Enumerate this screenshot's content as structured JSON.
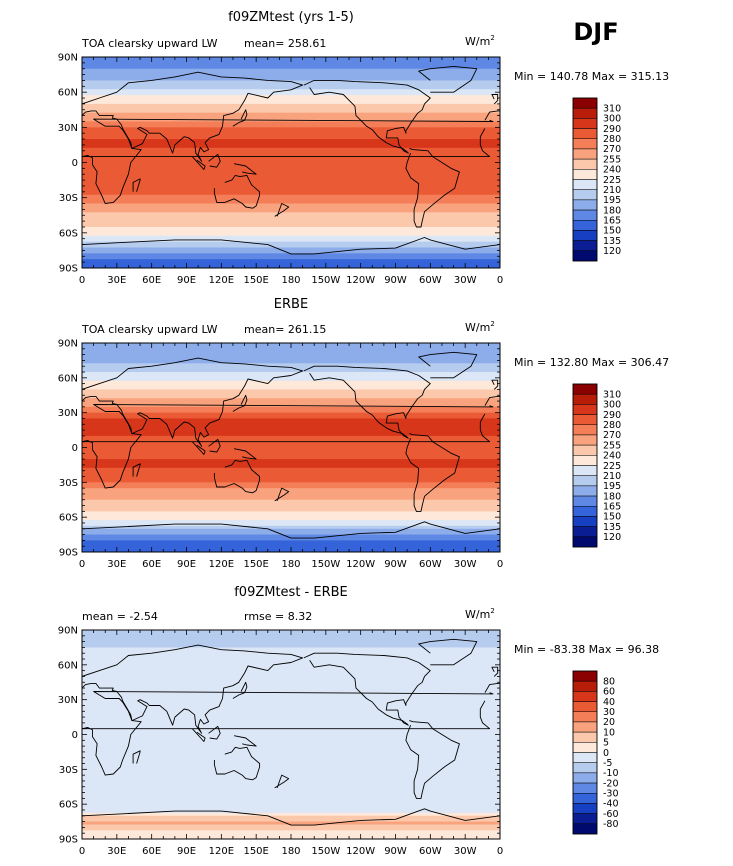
{
  "season": "DJF",
  "panels": [
    {
      "title": "f09ZMtest (yrs 1-5)",
      "left_label": "TOA clearsky upward LW",
      "center_label": "mean= 258.61",
      "units_text": "W/m",
      "units_sup": "2",
      "minmax": "Min = 140.78 Max = 315.13",
      "colorbar": {
        "levels": [
          "310",
          "300",
          "290",
          "280",
          "270",
          "255",
          "240",
          "225",
          "210",
          "195",
          "180",
          "165",
          "150",
          "135",
          "120"
        ],
        "colors": [
          "#8b0000",
          "#b81d0a",
          "#d8361a",
          "#ea5a35",
          "#f47e58",
          "#f9a27e",
          "#fcc8ac",
          "#fde8d9",
          "#dbe6f6",
          "#b6ccef",
          "#8cacea",
          "#5e88e3",
          "#3563d9",
          "#173fc2",
          "#0b1d93",
          "#000a6e"
        ]
      },
      "chart_data": {
        "type": "heatmap",
        "title": "f09ZMtest (yrs 1-5)",
        "variable": "TOA clearsky upward LW",
        "units": "W/m2",
        "mean": 258.61,
        "min": 140.78,
        "max": 315.13,
        "xlim": [
          0,
          360
        ],
        "ylim": [
          -90,
          90
        ],
        "x_tick_labels": [
          "0",
          "30E",
          "60E",
          "90E",
          "120E",
          "150E",
          "180",
          "150W",
          "120W",
          "90W",
          "60W",
          "30W",
          "0"
        ],
        "y_tick_labels": [
          "90N",
          "60N",
          "30N",
          "0",
          "30S",
          "60S",
          "90S"
        ],
        "zonal_profile": {
          "lat": [
            -85,
            -75,
            -65,
            -55,
            -45,
            -35,
            -25,
            -15,
            -5,
            5,
            15,
            25,
            35,
            45,
            55,
            65,
            75,
            85
          ],
          "values": [
            155,
            185,
            220,
            240,
            252,
            268,
            285,
            290,
            285,
            285,
            292,
            287,
            270,
            248,
            228,
            205,
            185,
            175
          ]
        }
      }
    },
    {
      "title": "ERBE",
      "left_label": "TOA clearsky upward LW",
      "center_label": "mean= 261.15",
      "units_text": "W/m",
      "units_sup": "2",
      "minmax": "Min = 132.80 Max = 306.47",
      "colorbar": {
        "levels": [
          "310",
          "300",
          "290",
          "280",
          "270",
          "255",
          "240",
          "225",
          "210",
          "195",
          "180",
          "165",
          "150",
          "135",
          "120"
        ],
        "colors": [
          "#8b0000",
          "#b81d0a",
          "#d8361a",
          "#ea5a35",
          "#f47e58",
          "#f9a27e",
          "#fcc8ac",
          "#fde8d9",
          "#dbe6f6",
          "#b6ccef",
          "#8cacea",
          "#5e88e3",
          "#3563d9",
          "#173fc2",
          "#0b1d93",
          "#000a6e"
        ]
      },
      "chart_data": {
        "type": "heatmap",
        "title": "ERBE",
        "variable": "TOA clearsky upward LW",
        "units": "W/m2",
        "mean": 261.15,
        "min": 132.8,
        "max": 306.47,
        "xlim": [
          0,
          360
        ],
        "ylim": [
          -90,
          90
        ],
        "x_tick_labels": [
          "0",
          "30E",
          "60E",
          "90E",
          "120E",
          "150E",
          "180",
          "150W",
          "120W",
          "90W",
          "60W",
          "30W",
          "0"
        ],
        "y_tick_labels": [
          "90N",
          "60N",
          "30N",
          "0",
          "30S",
          "60S",
          "90S"
        ],
        "zonal_profile": {
          "lat": [
            -85,
            -75,
            -65,
            -55,
            -45,
            -35,
            -25,
            -15,
            -5,
            5,
            15,
            25,
            35,
            45,
            55,
            65,
            75,
            85
          ],
          "values": [
            150,
            175,
            222,
            242,
            255,
            270,
            286,
            292,
            288,
            287,
            293,
            290,
            272,
            250,
            230,
            208,
            190,
            180
          ]
        }
      }
    },
    {
      "title": "f09ZMtest - ERBE",
      "left_label": "mean =   -2.54",
      "center_label": "rmse =    8.32",
      "units_text": "W/m",
      "units_sup": "2",
      "minmax": "Min = -83.38 Max =  96.38",
      "colorbar": {
        "levels": [
          "80",
          "60",
          "40",
          "30",
          "20",
          "10",
          "5",
          "0",
          "-5",
          "-10",
          "-20",
          "-30",
          "-40",
          "-60",
          "-80"
        ],
        "colors": [
          "#8b0000",
          "#b81d0a",
          "#d8361a",
          "#ea5a35",
          "#f47e58",
          "#f9a27e",
          "#fcc8ac",
          "#fde8d9",
          "#dbe6f6",
          "#b6ccef",
          "#8cacea",
          "#5e88e3",
          "#3563d9",
          "#173fc2",
          "#0b1d93",
          "#000a6e"
        ]
      },
      "chart_data": {
        "type": "heatmap",
        "title": "f09ZMtest - ERBE",
        "units": "W/m2",
        "mean": -2.54,
        "rmse": 8.32,
        "min": -83.38,
        "max": 96.38,
        "xlim": [
          0,
          360
        ],
        "ylim": [
          -90,
          90
        ],
        "x_tick_labels": [
          "0",
          "30E",
          "60E",
          "90E",
          "120E",
          "150E",
          "180",
          "150W",
          "120W",
          "90W",
          "60W",
          "30W",
          "0"
        ],
        "y_tick_labels": [
          "90N",
          "60N",
          "30N",
          "0",
          "30S",
          "60S",
          "90S"
        ],
        "zonal_profile": {
          "lat": [
            -85,
            -75,
            -65,
            -55,
            -45,
            -35,
            -25,
            -15,
            -5,
            5,
            15,
            25,
            35,
            45,
            55,
            65,
            75,
            85
          ],
          "values": [
            4,
            11,
            -3,
            -3,
            -3,
            -2,
            -1,
            -3,
            -4,
            -2,
            -2,
            -4,
            -4,
            -3,
            -2,
            -4,
            -5,
            -6
          ]
        }
      }
    }
  ]
}
